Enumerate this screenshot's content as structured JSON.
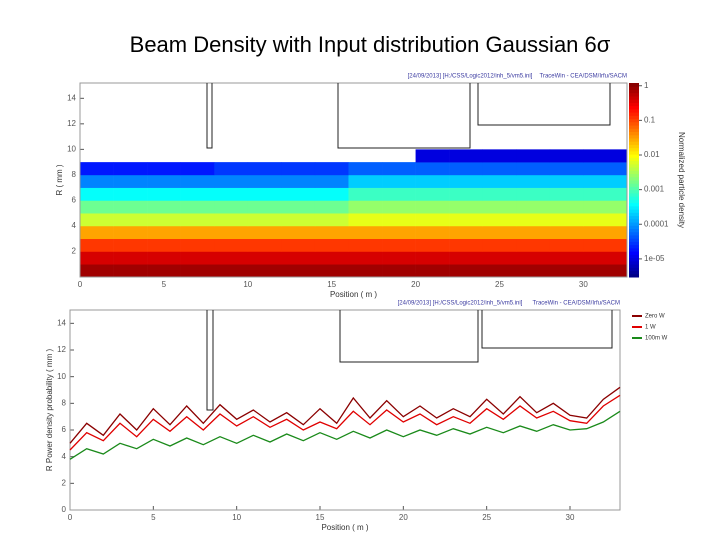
{
  "title": "Beam Density with Input distribution Gaussian 6σ",
  "chart_data": [
    {
      "type": "heatmap",
      "header": [
        "[24/09/2013] [H:/CSS/Logic2012/inh_5/vm5.ini]",
        "TraceWin - CEA/DSM/Irfu/SACM"
      ],
      "xlabel": "Position ( m )",
      "ylabel": "R ( mm )",
      "colorbar_label": "Normalized particle density",
      "xlim": [
        0,
        32.6
      ],
      "ylim": [
        0,
        15.2
      ],
      "xticks": [
        0,
        5,
        10,
        15,
        20,
        25,
        30
      ],
      "yticks": [
        2,
        4,
        6,
        8,
        10,
        12,
        14
      ],
      "clim": [
        3e-06,
        1.2
      ],
      "log_color": true,
      "cticks": [
        1,
        0.1,
        0.01,
        0.001,
        0.0001,
        {
          "value": 1e-05,
          "label": "1e-05"
        }
      ],
      "xbins": [
        0,
        2,
        4,
        6,
        8,
        10,
        12,
        14,
        16,
        18,
        20,
        22,
        24,
        26,
        28,
        30,
        32.6
      ],
      "rbins": [
        0,
        1,
        2,
        3,
        4,
        5,
        6,
        7,
        8,
        9,
        10
      ],
      "values": [
        [
          0.8,
          0.8,
          0.8,
          0.8,
          0.8,
          0.8,
          0.8,
          0.8,
          0.8,
          0.8,
          0.8,
          0.8,
          0.8,
          0.8,
          0.8,
          0.8
        ],
        [
          0.4,
          0.4,
          0.4,
          0.4,
          0.4,
          0.4,
          0.4,
          0.4,
          0.4,
          0.4,
          0.4,
          0.4,
          0.4,
          0.4,
          0.4,
          0.4
        ],
        [
          0.12,
          0.12,
          0.12,
          0.12,
          0.12,
          0.12,
          0.12,
          0.12,
          0.12,
          0.12,
          0.12,
          0.12,
          0.12,
          0.12,
          0.12,
          0.12
        ],
        [
          0.03,
          0.03,
          0.03,
          0.03,
          0.03,
          0.03,
          0.03,
          0.03,
          0.03,
          0.03,
          0.03,
          0.03,
          0.03,
          0.03,
          0.03,
          0.03
        ],
        [
          0.005,
          0.005,
          0.005,
          0.005,
          0.005,
          0.005,
          0.005,
          0.005,
          0.007,
          0.007,
          0.007,
          0.007,
          0.007,
          0.007,
          0.007,
          0.007
        ],
        [
          0.0015,
          0.0015,
          0.0015,
          0.0015,
          0.0015,
          0.0015,
          0.0015,
          0.0015,
          0.0025,
          0.0025,
          0.0025,
          0.0025,
          0.0025,
          0.0025,
          0.0025,
          0.0025
        ],
        [
          0.0004,
          0.0004,
          0.0004,
          0.0004,
          0.0004,
          0.0004,
          0.0004,
          0.0004,
          0.0008,
          0.0008,
          0.0008,
          0.0008,
          0.0008,
          0.0008,
          0.0008,
          0.0008
        ],
        [
          8e-05,
          8e-05,
          8e-05,
          8e-05,
          8e-05,
          8e-05,
          8e-05,
          8e-05,
          0.0002,
          0.0002,
          0.0002,
          0.0002,
          0.0002,
          0.0002,
          0.0002,
          0.0002
        ],
        [
          2e-05,
          2e-05,
          2e-05,
          2e-05,
          3e-05,
          3e-05,
          3e-05,
          3e-05,
          5e-05,
          5e-05,
          5e-05,
          5e-05,
          5e-05,
          5e-05,
          5e-05,
          5e-05
        ],
        [
          null,
          null,
          null,
          null,
          null,
          null,
          null,
          null,
          null,
          null,
          1e-05,
          1e-05,
          1e-05,
          1e-05,
          1e-05,
          1e-05
        ]
      ]
    },
    {
      "type": "line",
      "header": [
        "[24/09/2013] [H:/CSS/Logic2012/inh_5/vm5.ini]",
        "TraceWin - CEA/DSM/Irfu/SACM"
      ],
      "xlabel": "Position ( m )",
      "ylabel": "R Power density probability ( mm )",
      "xlim": [
        0,
        33
      ],
      "ylim": [
        0,
        15
      ],
      "xticks": [
        0,
        5,
        10,
        15,
        20,
        25,
        30
      ],
      "yticks": [
        0,
        2,
        4,
        6,
        8,
        10,
        12,
        14
      ],
      "x": [
        0,
        1,
        2,
        3,
        4,
        5,
        6,
        7,
        8,
        9,
        10,
        11,
        12,
        13,
        14,
        15,
        16,
        17,
        18,
        19,
        20,
        21,
        22,
        23,
        24,
        25,
        26,
        27,
        28,
        29,
        30,
        31,
        32,
        33
      ],
      "series": [
        {
          "name": "Zero W",
          "color": "#8b0000",
          "values": [
            5.0,
            6.5,
            5.6,
            7.2,
            6.0,
            7.6,
            6.4,
            7.8,
            6.5,
            7.9,
            6.8,
            7.5,
            6.6,
            7.3,
            6.4,
            7.6,
            6.5,
            8.4,
            6.9,
            8.2,
            7.0,
            7.8,
            6.9,
            7.6,
            7.0,
            8.3,
            7.2,
            8.5,
            7.3,
            8.0,
            7.1,
            6.9,
            8.3,
            9.2
          ]
        },
        {
          "name": "1 W",
          "color": "#e00000",
          "values": [
            4.5,
            5.8,
            5.2,
            6.5,
            5.5,
            6.8,
            5.9,
            7.0,
            6.0,
            7.2,
            6.3,
            7.0,
            6.2,
            6.8,
            6.0,
            6.6,
            6.1,
            7.4,
            6.4,
            7.5,
            6.6,
            7.2,
            6.4,
            7.0,
            6.5,
            7.6,
            6.8,
            7.8,
            6.9,
            7.4,
            6.7,
            6.5,
            7.8,
            8.6
          ]
        },
        {
          "name": "100m W",
          "color": "#1a8a1a",
          "values": [
            3.8,
            4.6,
            4.2,
            5.0,
            4.6,
            5.3,
            4.8,
            5.4,
            4.9,
            5.5,
            5.0,
            5.6,
            5.1,
            5.7,
            5.2,
            5.8,
            5.3,
            5.9,
            5.4,
            6.0,
            5.5,
            6.0,
            5.6,
            6.1,
            5.7,
            6.2,
            5.8,
            6.3,
            5.9,
            6.4,
            6.0,
            6.1,
            6.6,
            7.4
          ]
        }
      ]
    }
  ]
}
